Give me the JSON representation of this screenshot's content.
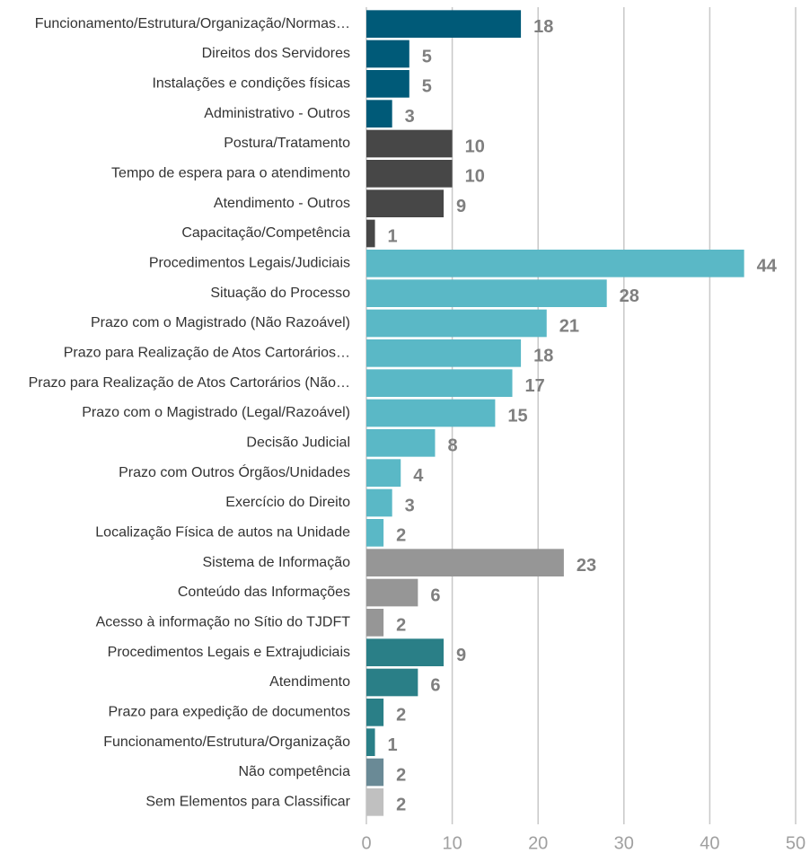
{
  "chart_data": {
    "type": "bar",
    "orientation": "horizontal",
    "categories": [
      "Funcionamento/Estrutura/Organização/Normas…",
      "Direitos dos Servidores",
      "Instalações e condições físicas",
      "Administrativo - Outros",
      "Postura/Tratamento",
      "Tempo de espera para o atendimento",
      "Atendimento - Outros",
      "Capacitação/Competência",
      "Procedimentos Legais/Judiciais",
      "Situação do Processo",
      "Prazo com o Magistrado (Não Razoável)",
      "Prazo para Realização de Atos Cartorários…",
      "Prazo para Realização de Atos Cartorários (Não…",
      "Prazo com o Magistrado (Legal/Razoável)",
      "Decisão Judicial",
      "Prazo com Outros Órgãos/Unidades",
      "Exercício do Direito",
      "Localização Física de autos na Unidade",
      "Sistema de Informação",
      "Conteúdo das Informações",
      "Acesso à informação no Sítio do TJDFT",
      "Procedimentos Legais e Extrajudiciais",
      "Atendimento",
      "Prazo para expedição de documentos",
      "Funcionamento/Estrutura/Organização",
      "Não competência",
      "Sem Elementos para Classificar"
    ],
    "values": [
      18,
      5,
      5,
      3,
      10,
      10,
      9,
      1,
      44,
      28,
      21,
      18,
      17,
      15,
      8,
      4,
      3,
      2,
      23,
      6,
      2,
      9,
      6,
      2,
      1,
      2,
      2
    ],
    "colors": [
      "#005a78",
      "#005a78",
      "#005a78",
      "#005a78",
      "#474747",
      "#474747",
      "#474747",
      "#474747",
      "#5ab8c6",
      "#5ab8c6",
      "#5ab8c6",
      "#5ab8c6",
      "#5ab8c6",
      "#5ab8c6",
      "#5ab8c6",
      "#5ab8c6",
      "#5ab8c6",
      "#5ab8c6",
      "#969696",
      "#969696",
      "#969696",
      "#2a7f87",
      "#2a7f87",
      "#2a7f87",
      "#2a7f87",
      "#6a8a96",
      "#c0c0c0"
    ],
    "xlim": [
      0,
      50
    ],
    "xticks": [
      0,
      10,
      20,
      30,
      40,
      50
    ],
    "grid": true
  }
}
